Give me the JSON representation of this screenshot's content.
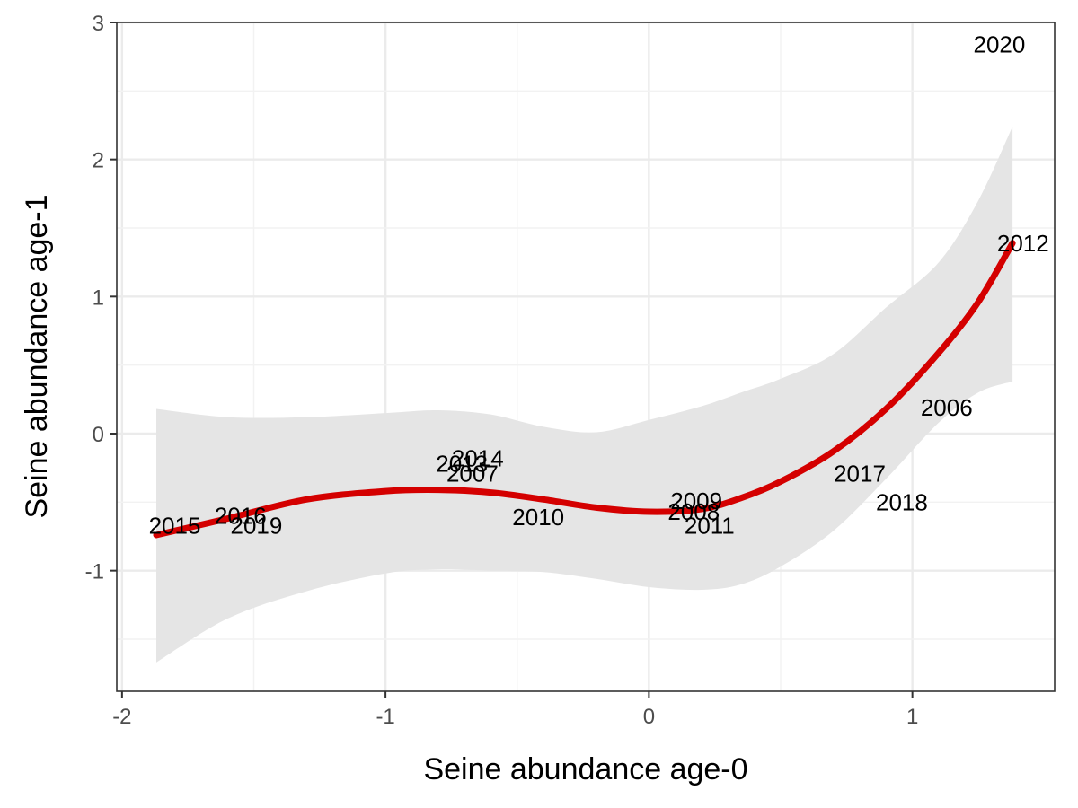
{
  "chart_data": {
    "type": "scatter",
    "title": "",
    "xlabel": "Seine abundance age-0",
    "ylabel": "Seine abundance age-1",
    "xlim": [
      -2.02,
      1.54
    ],
    "ylim": [
      -1.88,
      3.0
    ],
    "x_ticks": [
      -2,
      -1,
      0,
      1
    ],
    "y_ticks": [
      -1,
      0,
      1,
      2,
      3
    ],
    "grid": true,
    "colors": {
      "smooth_line": "#d40000",
      "confidence_band": "#e5e5e5",
      "panel_border": "#333333",
      "major_grid": "#ebebeb",
      "minor_grid": "#f2f2f2"
    },
    "labeled_points": [
      {
        "label": "2006",
        "x": 1.13,
        "y": 0.19
      },
      {
        "label": "2007",
        "x": -0.67,
        "y": -0.29
      },
      {
        "label": "2008",
        "x": 0.17,
        "y": -0.57
      },
      {
        "label": "2009",
        "x": 0.18,
        "y": -0.49
      },
      {
        "label": "2010",
        "x": -0.42,
        "y": -0.61
      },
      {
        "label": "2011",
        "x": 0.23,
        "y": -0.67
      },
      {
        "label": "2012",
        "x": 1.42,
        "y": 1.39
      },
      {
        "label": "2013",
        "x": -0.71,
        "y": -0.22
      },
      {
        "label": "2014",
        "x": -0.65,
        "y": -0.18
      },
      {
        "label": "2015",
        "x": -1.8,
        "y": -0.67
      },
      {
        "label": "2016",
        "x": -1.55,
        "y": -0.6
      },
      {
        "label": "2017",
        "x": 0.8,
        "y": -0.29
      },
      {
        "label": "2018",
        "x": 0.96,
        "y": -0.5
      },
      {
        "label": "2019",
        "x": -1.49,
        "y": -0.67
      },
      {
        "label": "2020",
        "x": 1.33,
        "y": 2.84
      }
    ],
    "smooth": {
      "x": [
        -1.87,
        -1.6,
        -1.3,
        -1.0,
        -0.8,
        -0.6,
        -0.4,
        -0.2,
        0.0,
        0.2,
        0.35,
        0.5,
        0.7,
        0.9,
        1.1,
        1.25,
        1.38
      ],
      "y": [
        -0.74,
        -0.62,
        -0.48,
        -0.42,
        -0.41,
        -0.43,
        -0.48,
        -0.54,
        -0.57,
        -0.55,
        -0.47,
        -0.35,
        -0.13,
        0.18,
        0.59,
        0.96,
        1.39
      ],
      "lower": [
        -1.67,
        -1.35,
        -1.15,
        -1.02,
        -0.99,
        -1.0,
        -1.01,
        -1.06,
        -1.12,
        -1.14,
        -1.1,
        -0.97,
        -0.71,
        -0.33,
        0.08,
        0.3,
        0.38
      ],
      "upper": [
        0.18,
        0.12,
        0.12,
        0.15,
        0.17,
        0.14,
        0.05,
        0.01,
        0.1,
        0.2,
        0.3,
        0.4,
        0.58,
        0.92,
        1.25,
        1.7,
        2.24
      ]
    }
  }
}
